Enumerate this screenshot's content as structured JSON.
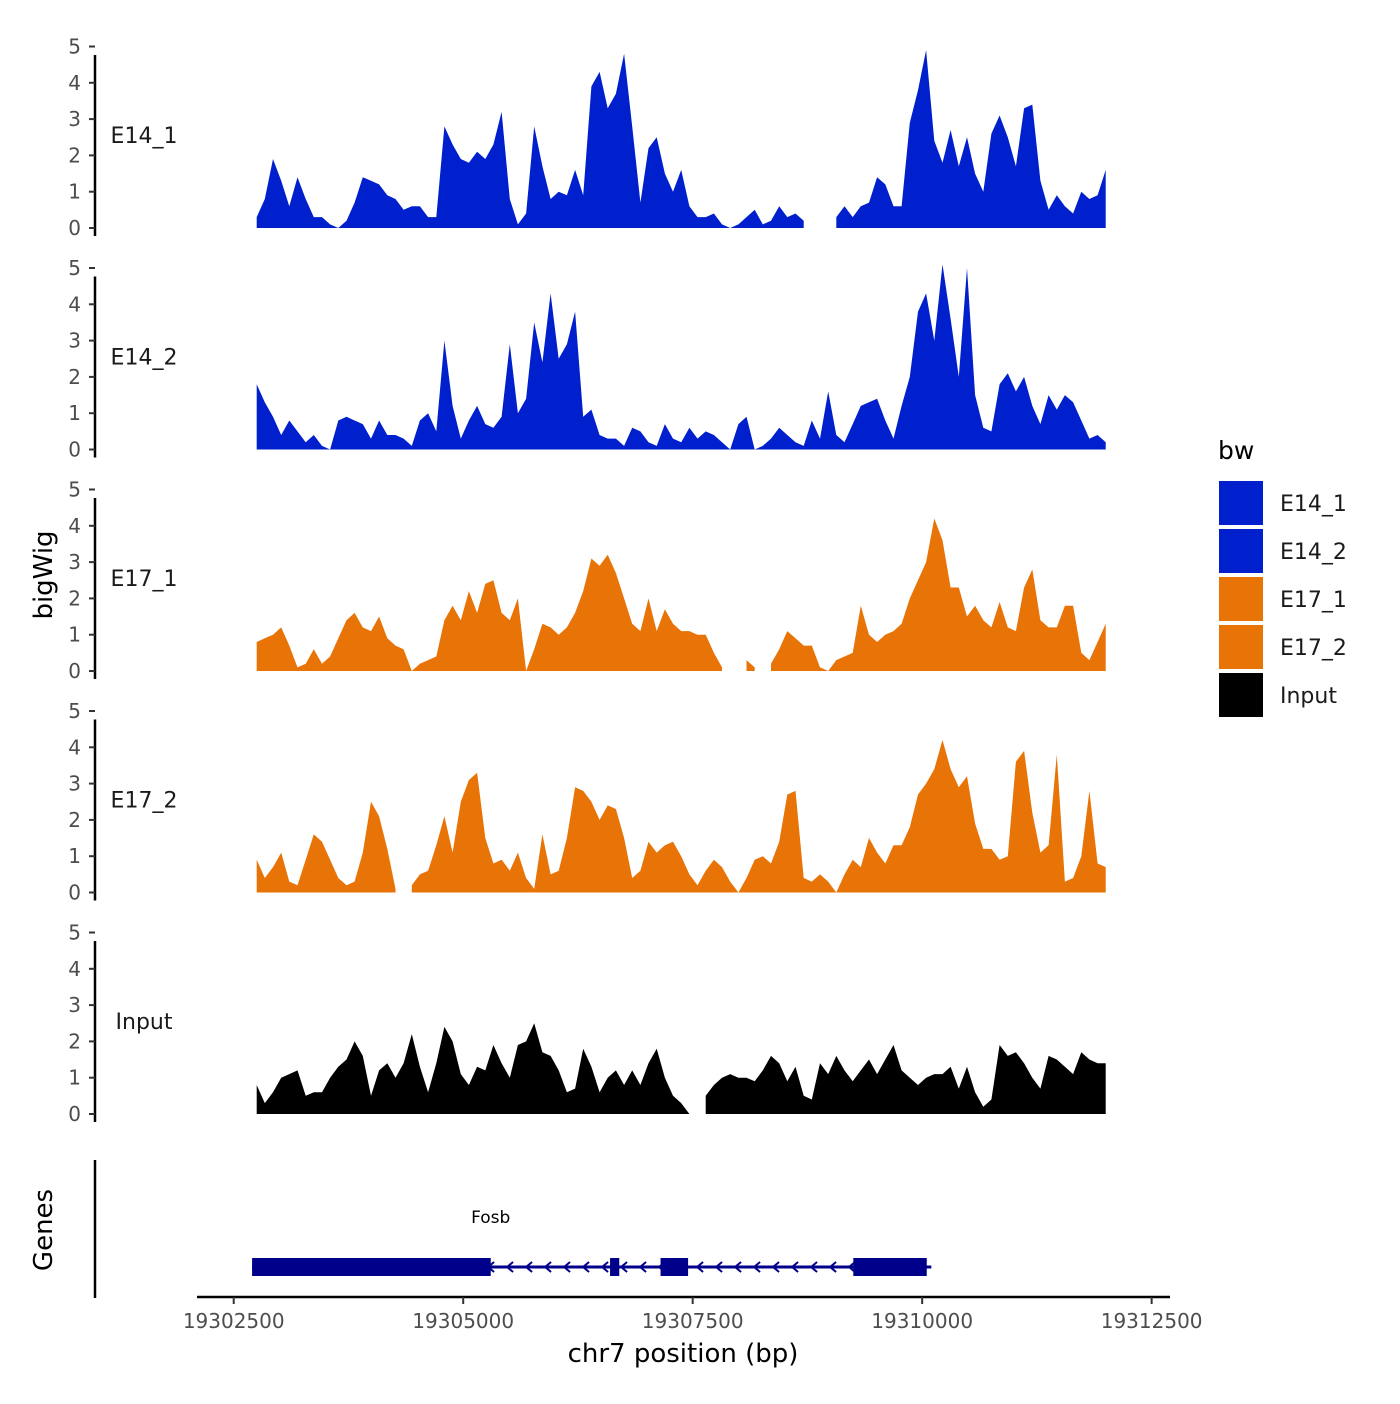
{
  "chart_data": {
    "type": "area",
    "title": "",
    "ylabel": "bigWig",
    "xlabel": "chr7 position (bp)",
    "xlim": [
      19302100,
      19312700
    ],
    "data_xrange": [
      19302750,
      19312000
    ],
    "ylim": [
      0,
      5.2
    ],
    "y_ticks": [
      "0",
      "1",
      "2",
      "3",
      "4",
      "5"
    ],
    "x_ticks": [
      19302500,
      19305000,
      19307500,
      19310000,
      19312500
    ],
    "x_tick_labels": [
      "19302500",
      "19305000",
      "19307500",
      "19310000",
      "19312500"
    ],
    "gene_track_label": "Genes",
    "legend": {
      "title": "bw",
      "entries": [
        {
          "label": "E14_1",
          "color": "#0020CD"
        },
        {
          "label": "E14_2",
          "color": "#0020CD"
        },
        {
          "label": "E17_1",
          "color": "#E87306"
        },
        {
          "label": "E17_2",
          "color": "#E87306"
        },
        {
          "label": "Input",
          "color": "#000000"
        }
      ]
    },
    "series": [
      {
        "name": "E14_1",
        "color": "#0020CD",
        "values": [
          0.3,
          0.8,
          1.9,
          1.3,
          0.6,
          1.4,
          0.8,
          0.3,
          0.3,
          0.1,
          0.0,
          0.2,
          0.7,
          1.4,
          1.3,
          1.2,
          0.9,
          0.8,
          0.5,
          0.6,
          0.6,
          0.3,
          0.3,
          2.8,
          2.3,
          1.9,
          1.8,
          2.1,
          1.9,
          2.3,
          3.2,
          0.8,
          0.1,
          0.4,
          2.8,
          1.7,
          0.8,
          1.0,
          0.9,
          1.6,
          0.9,
          3.9,
          4.3,
          3.3,
          3.7,
          4.8,
          2.8,
          0.7,
          2.2,
          2.5,
          1.5,
          1.0,
          1.6,
          0.6,
          0.3,
          0.3,
          0.4,
          0.1,
          0.0,
          0.1,
          0.3,
          0.5,
          0.1,
          0.2,
          0.6,
          0.3,
          0.4,
          0.2,
          null,
          null,
          null,
          0.3,
          0.6,
          0.3,
          0.6,
          0.7,
          1.4,
          1.2,
          0.6,
          0.6,
          2.9,
          3.8,
          4.9,
          2.4,
          1.8,
          2.7,
          1.7,
          2.5,
          1.5,
          1.0,
          2.6,
          3.1,
          2.5,
          1.7,
          3.3,
          3.4,
          1.3,
          0.5,
          0.9,
          0.6,
          0.4,
          1.0,
          0.8,
          0.9,
          1.6
        ]
      },
      {
        "name": "E14_2",
        "color": "#0020CD",
        "values": [
          1.8,
          1.3,
          0.9,
          0.4,
          0.8,
          0.5,
          0.2,
          0.4,
          0.1,
          0.0,
          0.8,
          0.9,
          0.8,
          0.7,
          0.3,
          0.8,
          0.4,
          0.4,
          0.3,
          0.1,
          0.8,
          1.0,
          0.5,
          3.0,
          1.2,
          0.3,
          0.8,
          1.2,
          0.7,
          0.6,
          0.9,
          2.9,
          1.0,
          1.4,
          3.5,
          2.4,
          4.3,
          2.5,
          2.9,
          3.8,
          0.9,
          1.1,
          0.4,
          0.3,
          0.3,
          0.1,
          0.6,
          0.5,
          0.2,
          0.1,
          0.7,
          0.3,
          0.2,
          0.6,
          0.3,
          0.5,
          0.4,
          0.2,
          0.0,
          0.7,
          0.9,
          0.0,
          0.1,
          0.3,
          0.6,
          0.4,
          0.2,
          0.1,
          0.8,
          0.3,
          1.6,
          0.4,
          0.2,
          0.7,
          1.2,
          1.3,
          1.4,
          0.8,
          0.3,
          1.2,
          2.0,
          3.8,
          4.3,
          3.0,
          5.1,
          3.6,
          2.0,
          5.0,
          1.5,
          0.6,
          0.5,
          1.8,
          2.1,
          1.6,
          2.0,
          1.2,
          0.7,
          1.5,
          1.1,
          1.5,
          1.3,
          0.8,
          0.3,
          0.4,
          0.2
        ]
      },
      {
        "name": "E17_1",
        "color": "#E87306",
        "values": [
          0.8,
          0.9,
          1.0,
          1.2,
          0.7,
          0.1,
          0.2,
          0.6,
          0.2,
          0.4,
          0.9,
          1.4,
          1.6,
          1.2,
          1.1,
          1.5,
          0.9,
          0.7,
          0.6,
          0.0,
          0.2,
          0.3,
          0.4,
          1.4,
          1.8,
          1.4,
          2.2,
          1.6,
          2.4,
          2.5,
          1.6,
          1.4,
          2.0,
          0.0,
          0.6,
          1.3,
          1.2,
          1.0,
          1.2,
          1.6,
          2.2,
          3.1,
          2.9,
          3.2,
          2.7,
          2.0,
          1.3,
          1.1,
          2.0,
          1.1,
          1.7,
          1.3,
          1.1,
          1.1,
          1.0,
          1.0,
          0.5,
          0.1,
          null,
          null,
          0.3,
          0.1,
          null,
          0.2,
          0.6,
          1.1,
          0.9,
          0.7,
          0.7,
          0.1,
          0.0,
          0.3,
          0.4,
          0.5,
          1.8,
          1.0,
          0.8,
          1.0,
          1.1,
          1.3,
          2.0,
          2.5,
          3.0,
          4.2,
          3.6,
          2.3,
          2.3,
          1.5,
          1.8,
          1.4,
          1.2,
          1.9,
          1.2,
          1.1,
          2.3,
          2.8,
          1.4,
          1.2,
          1.2,
          1.8,
          1.8,
          0.5,
          0.3,
          0.8,
          1.3
        ]
      },
      {
        "name": "E17_2",
        "color": "#E87306",
        "values": [
          0.9,
          0.4,
          0.7,
          1.1,
          0.3,
          0.2,
          0.9,
          1.6,
          1.4,
          0.9,
          0.4,
          0.2,
          0.3,
          1.1,
          2.5,
          2.1,
          1.2,
          0.1,
          null,
          0.2,
          0.5,
          0.6,
          1.3,
          2.1,
          1.1,
          2.5,
          3.1,
          3.3,
          1.5,
          0.8,
          0.9,
          0.6,
          1.1,
          0.4,
          0.1,
          1.6,
          0.5,
          0.6,
          1.5,
          2.9,
          2.8,
          2.5,
          2.0,
          2.4,
          2.3,
          1.5,
          0.4,
          0.6,
          1.4,
          1.1,
          1.3,
          1.4,
          1.0,
          0.5,
          0.2,
          0.6,
          0.9,
          0.7,
          0.3,
          0.0,
          0.4,
          0.9,
          1.0,
          0.8,
          1.4,
          2.7,
          2.8,
          0.4,
          0.3,
          0.5,
          0.3,
          0.0,
          0.5,
          0.9,
          0.7,
          1.5,
          1.1,
          0.8,
          1.3,
          1.3,
          1.8,
          2.7,
          3.0,
          3.4,
          4.2,
          3.4,
          2.9,
          3.2,
          1.9,
          1.2,
          1.2,
          0.9,
          1.0,
          3.6,
          3.9,
          2.2,
          1.1,
          1.3,
          3.8,
          0.3,
          0.4,
          1.0,
          2.8,
          0.8,
          0.7
        ]
      },
      {
        "name": "Input",
        "color": "#000000",
        "values": [
          0.8,
          0.3,
          0.6,
          1.0,
          1.1,
          1.2,
          0.5,
          0.6,
          0.6,
          1.0,
          1.3,
          1.5,
          2.0,
          1.6,
          0.5,
          1.2,
          1.4,
          1.0,
          1.4,
          2.2,
          1.3,
          0.6,
          1.4,
          2.4,
          2.0,
          1.1,
          0.8,
          1.3,
          1.2,
          1.9,
          1.4,
          1.0,
          1.9,
          2.0,
          2.5,
          1.7,
          1.6,
          1.2,
          0.6,
          0.7,
          1.8,
          1.3,
          0.6,
          1.0,
          1.2,
          0.8,
          1.2,
          0.8,
          1.4,
          1.8,
          1.0,
          0.5,
          0.3,
          0.0,
          null,
          0.5,
          0.8,
          1.0,
          1.1,
          1.0,
          1.0,
          0.9,
          1.2,
          1.6,
          1.4,
          0.9,
          1.3,
          0.5,
          0.4,
          1.4,
          1.1,
          1.6,
          1.2,
          0.9,
          1.2,
          1.5,
          1.1,
          1.5,
          1.9,
          1.2,
          1.0,
          0.8,
          1.0,
          1.1,
          1.1,
          1.3,
          0.7,
          1.3,
          0.6,
          0.2,
          0.4,
          1.9,
          1.6,
          1.7,
          1.4,
          1.0,
          0.7,
          1.6,
          1.5,
          1.3,
          1.1,
          1.7,
          1.5,
          1.4,
          1.4
        ]
      }
    ],
    "gene": {
      "name": "Fosb",
      "strand": "-",
      "start": 19302700,
      "end": 19310100,
      "color": "#00008B",
      "exons": [
        [
          19302700,
          19305300
        ],
        [
          19306600,
          19306700
        ],
        [
          19307150,
          19307450
        ],
        [
          19309250,
          19310050
        ]
      ]
    }
  }
}
